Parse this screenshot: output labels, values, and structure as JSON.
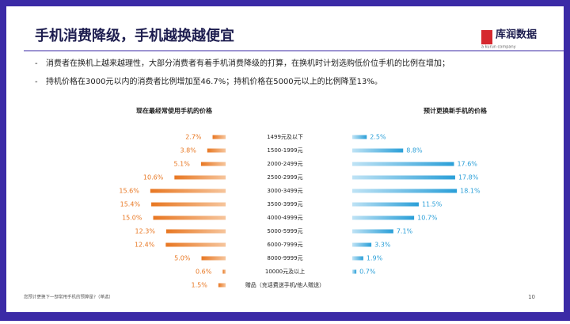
{
  "header": {
    "title": "手机消费降级，手机越换越便宜",
    "logo": "库润数据",
    "logo_sub": "a kurun company"
  },
  "bullets": [
    "消费者在换机上越来越理性，大部分消费者有着手机消费降级的打算，在换机时计划选购低价位手机的比例在增加；",
    "持机价格在3000元以内的消费者比例增加至46.7%；持机价格在5000元以上的比例降至13%。"
  ],
  "chart_data": {
    "type": "butterfly-bar",
    "categories": [
      "1499元及以下",
      "1500-1999元",
      "2000-2499元",
      "2500-2999元",
      "3000-3499元",
      "3500-3999元",
      "4000-4999元",
      "5000-5999元",
      "6000-7999元",
      "8000-9999元",
      "10000元及以上",
      "赠品（充话费送手机/他人赠送）"
    ],
    "xlim": [
      0,
      20
    ],
    "series": [
      {
        "name": "现在最经常使用手机的价格",
        "color": "#e87722",
        "values": [
          2.7,
          3.8,
          5.1,
          10.6,
          15.6,
          15.4,
          15.0,
          12.3,
          12.4,
          5.0,
          0.6,
          1.5
        ],
        "value_labels": [
          "2.7%",
          "3.8%",
          "5.1%",
          "10.6%",
          "15.6%",
          "15.4%",
          "15.0%",
          "12.3%",
          "12.4%",
          "5.0%",
          "0.6%",
          "1.5%"
        ]
      },
      {
        "name": "预计更换新手机的价格",
        "color": "#2a9fd8",
        "values": [
          2.5,
          8.8,
          17.6,
          17.8,
          18.1,
          11.5,
          10.7,
          7.1,
          3.3,
          1.9,
          0.7,
          null
        ],
        "value_labels": [
          "2.5%",
          "8.8%",
          "17.6%",
          "17.8%",
          "18.1%",
          "11.5%",
          "10.7%",
          "7.1%",
          "3.3%",
          "1.9%",
          "0.7%",
          null
        ]
      }
    ]
  },
  "footnote": "您预计更换下一部常用手机的预算是?（单选）",
  "page_number": 10
}
